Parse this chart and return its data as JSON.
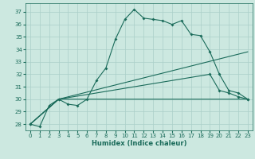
{
  "xlabel": "Humidex (Indice chaleur)",
  "bg_color": "#cce8e0",
  "line_color": "#1a6b5a",
  "grid_color": "#aacfc8",
  "xlim": [
    -0.5,
    23.5
  ],
  "ylim": [
    27.5,
    37.7
  ],
  "yticks": [
    28,
    29,
    30,
    31,
    32,
    33,
    34,
    35,
    36,
    37
  ],
  "xticks": [
    0,
    1,
    2,
    3,
    4,
    5,
    6,
    7,
    8,
    9,
    10,
    11,
    12,
    13,
    14,
    15,
    16,
    17,
    18,
    19,
    20,
    21,
    22,
    23
  ],
  "series_main": {
    "x": [
      0,
      1,
      2,
      3,
      4,
      5,
      6,
      7,
      8,
      9,
      10,
      11,
      12,
      13,
      14,
      15,
      16,
      17,
      18,
      19,
      20,
      21,
      22,
      23
    ],
    "y": [
      28,
      27.8,
      29.5,
      30.0,
      29.6,
      29.5,
      30.0,
      31.5,
      32.5,
      34.8,
      36.4,
      37.2,
      36.5,
      36.4,
      36.3,
      36.0,
      36.3,
      35.2,
      35.1,
      33.8,
      32.0,
      30.7,
      30.5,
      30.0
    ]
  },
  "series_diag": {
    "x": [
      0,
      3,
      23
    ],
    "y": [
      28,
      30.0,
      33.8
    ]
  },
  "series_flat": {
    "x": [
      0,
      3,
      23
    ],
    "y": [
      28,
      30.0,
      30.0
    ]
  },
  "series_short": {
    "x": [
      0,
      3,
      19,
      20,
      21,
      22,
      23
    ],
    "y": [
      28,
      30.0,
      32.0,
      30.7,
      30.5,
      30.2,
      30.0
    ]
  }
}
